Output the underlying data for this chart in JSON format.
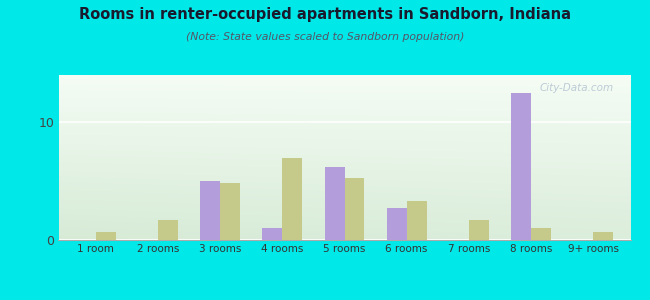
{
  "categories": [
    "1 room",
    "2 rooms",
    "3 rooms",
    "4 rooms",
    "5 rooms",
    "6 rooms",
    "7 rooms",
    "8 rooms",
    "9+ rooms"
  ],
  "sandborn": [
    0,
    0,
    5.0,
    1.0,
    6.2,
    2.7,
    0,
    12.5,
    0
  ],
  "indiana": [
    0.7,
    1.7,
    4.8,
    7.0,
    5.3,
    3.3,
    1.7,
    1.0,
    0.7
  ],
  "sandborn_color": "#b39ddb",
  "indiana_color": "#c5c98a",
  "title": "Rooms in renter-occupied apartments in Sandborn, Indiana",
  "subtitle": "(Note: State values scaled to Sandborn population)",
  "bg_outer": "#00e8e8",
  "ylim": [
    0,
    14
  ],
  "yticks": [
    0,
    10
  ],
  "bar_width": 0.32,
  "watermark": "City-Data.com"
}
